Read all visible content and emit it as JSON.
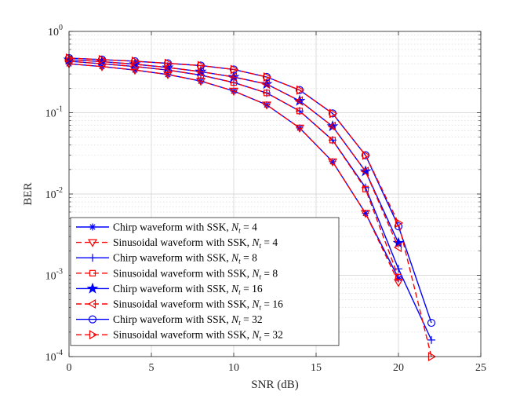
{
  "chart_data": {
    "type": "line",
    "title": "",
    "xlabel": "SNR (dB)",
    "ylabel": "BER",
    "xlim": [
      0,
      25
    ],
    "ylim": [
      0.0001,
      1
    ],
    "yscale": "log",
    "grid": true,
    "minor_grid": true,
    "legend_position": "bottom-left",
    "x_ticks": [
      "0",
      "5",
      "10",
      "15",
      "20",
      "25"
    ],
    "y_ticks": [
      {
        "base": "10",
        "exp": "0",
        "value": 1
      },
      {
        "base": "10",
        "exp": "-1",
        "value": 0.1
      },
      {
        "base": "10",
        "exp": "-2",
        "value": 0.01
      },
      {
        "base": "10",
        "exp": "-3",
        "value": 0.001
      },
      {
        "base": "10",
        "exp": "-4",
        "value": 0.0001
      }
    ],
    "series": [
      {
        "name": "Chirp waveform with SSK, N_t = 4",
        "legend_label": "Chirp waveform with SSK, ",
        "nt_label": "4",
        "color": "#0000ff",
        "dash": "solid",
        "marker": "asterisk",
        "x": [
          0,
          2,
          4,
          6,
          8,
          10,
          12,
          14,
          16,
          18,
          20
        ],
        "y": [
          0.4,
          0.37,
          0.335,
          0.295,
          0.245,
          0.185,
          0.125,
          0.065,
          0.025,
          0.0058,
          0.00092
        ]
      },
      {
        "name": "Sinusoidal waveform with SSK, N_t = 4",
        "legend_label": "Sinusoidal waveform with SSK, ",
        "nt_label": "4",
        "color": "#ff0000",
        "dash": "dashed",
        "marker": "triangle-down",
        "x": [
          0,
          2,
          4,
          6,
          8,
          10,
          12,
          14,
          16,
          18,
          20
        ],
        "y": [
          0.4,
          0.37,
          0.335,
          0.295,
          0.245,
          0.185,
          0.125,
          0.065,
          0.025,
          0.0058,
          0.00082
        ]
      },
      {
        "name": "Chirp waveform with SSK, N_t = 8",
        "legend_label": "Chirp waveform with SSK, ",
        "nt_label": "8",
        "color": "#0000ff",
        "dash": "solid",
        "marker": "plus",
        "x": [
          0,
          2,
          4,
          6,
          8,
          10,
          12,
          14,
          16,
          18,
          20,
          22
        ],
        "y": [
          0.43,
          0.4,
          0.37,
          0.335,
          0.29,
          0.235,
          0.175,
          0.105,
          0.046,
          0.012,
          0.0012,
          0.00016
        ]
      },
      {
        "name": "Sinusoidal waveform with SSK, N_t = 8",
        "legend_label": "Sinusoidal waveform with SSK, ",
        "nt_label": "8",
        "color": "#ff0000",
        "dash": "dashed",
        "marker": "square",
        "x": [
          0,
          2,
          4,
          6,
          8,
          10,
          12,
          14,
          16,
          18,
          20
        ],
        "y": [
          0.43,
          0.4,
          0.37,
          0.335,
          0.29,
          0.235,
          0.175,
          0.105,
          0.046,
          0.0115,
          0.00095
        ]
      },
      {
        "name": "Chirp waveform with SSK, N_t = 16",
        "legend_label": "Chirp waveform with SSK, ",
        "nt_label": "16",
        "color": "#0000ff",
        "dash": "solid",
        "marker": "star",
        "x": [
          0,
          2,
          4,
          6,
          8,
          10,
          12,
          14,
          16,
          18,
          20
        ],
        "y": [
          0.45,
          0.425,
          0.395,
          0.36,
          0.32,
          0.275,
          0.225,
          0.14,
          0.068,
          0.019,
          0.0025
        ]
      },
      {
        "name": "Sinusoidal waveform with SSK, N_t = 16",
        "legend_label": "Sinusoidal waveform with SSK, ",
        "nt_label": "16",
        "color": "#ff0000",
        "dash": "dashed",
        "marker": "triangle-left",
        "x": [
          0,
          2,
          4,
          6,
          8,
          10,
          12,
          14,
          16,
          18,
          20
        ],
        "y": [
          0.45,
          0.425,
          0.395,
          0.36,
          0.32,
          0.275,
          0.225,
          0.14,
          0.068,
          0.019,
          0.0022
        ]
      },
      {
        "name": "Chirp waveform with SSK, N_t = 32",
        "legend_label": "Chirp waveform with SSK, ",
        "nt_label": "32",
        "color": "#0000ff",
        "dash": "solid",
        "marker": "circle",
        "x": [
          0,
          2,
          4,
          6,
          8,
          10,
          12,
          14,
          16,
          18,
          20,
          22
        ],
        "y": [
          0.47,
          0.45,
          0.43,
          0.405,
          0.38,
          0.34,
          0.275,
          0.19,
          0.098,
          0.03,
          0.004,
          0.00026
        ]
      },
      {
        "name": "Sinusoidal waveform with SSK, N_t = 32",
        "legend_label": "Sinusoidal waveform with SSK, ",
        "nt_label": "32",
        "color": "#ff0000",
        "dash": "dashed",
        "marker": "triangle-right",
        "x": [
          0,
          2,
          4,
          6,
          8,
          10,
          12,
          14,
          16,
          18,
          20,
          22
        ],
        "y": [
          0.47,
          0.45,
          0.43,
          0.405,
          0.38,
          0.34,
          0.275,
          0.19,
          0.098,
          0.03,
          0.0044,
          0.0001
        ]
      }
    ]
  }
}
